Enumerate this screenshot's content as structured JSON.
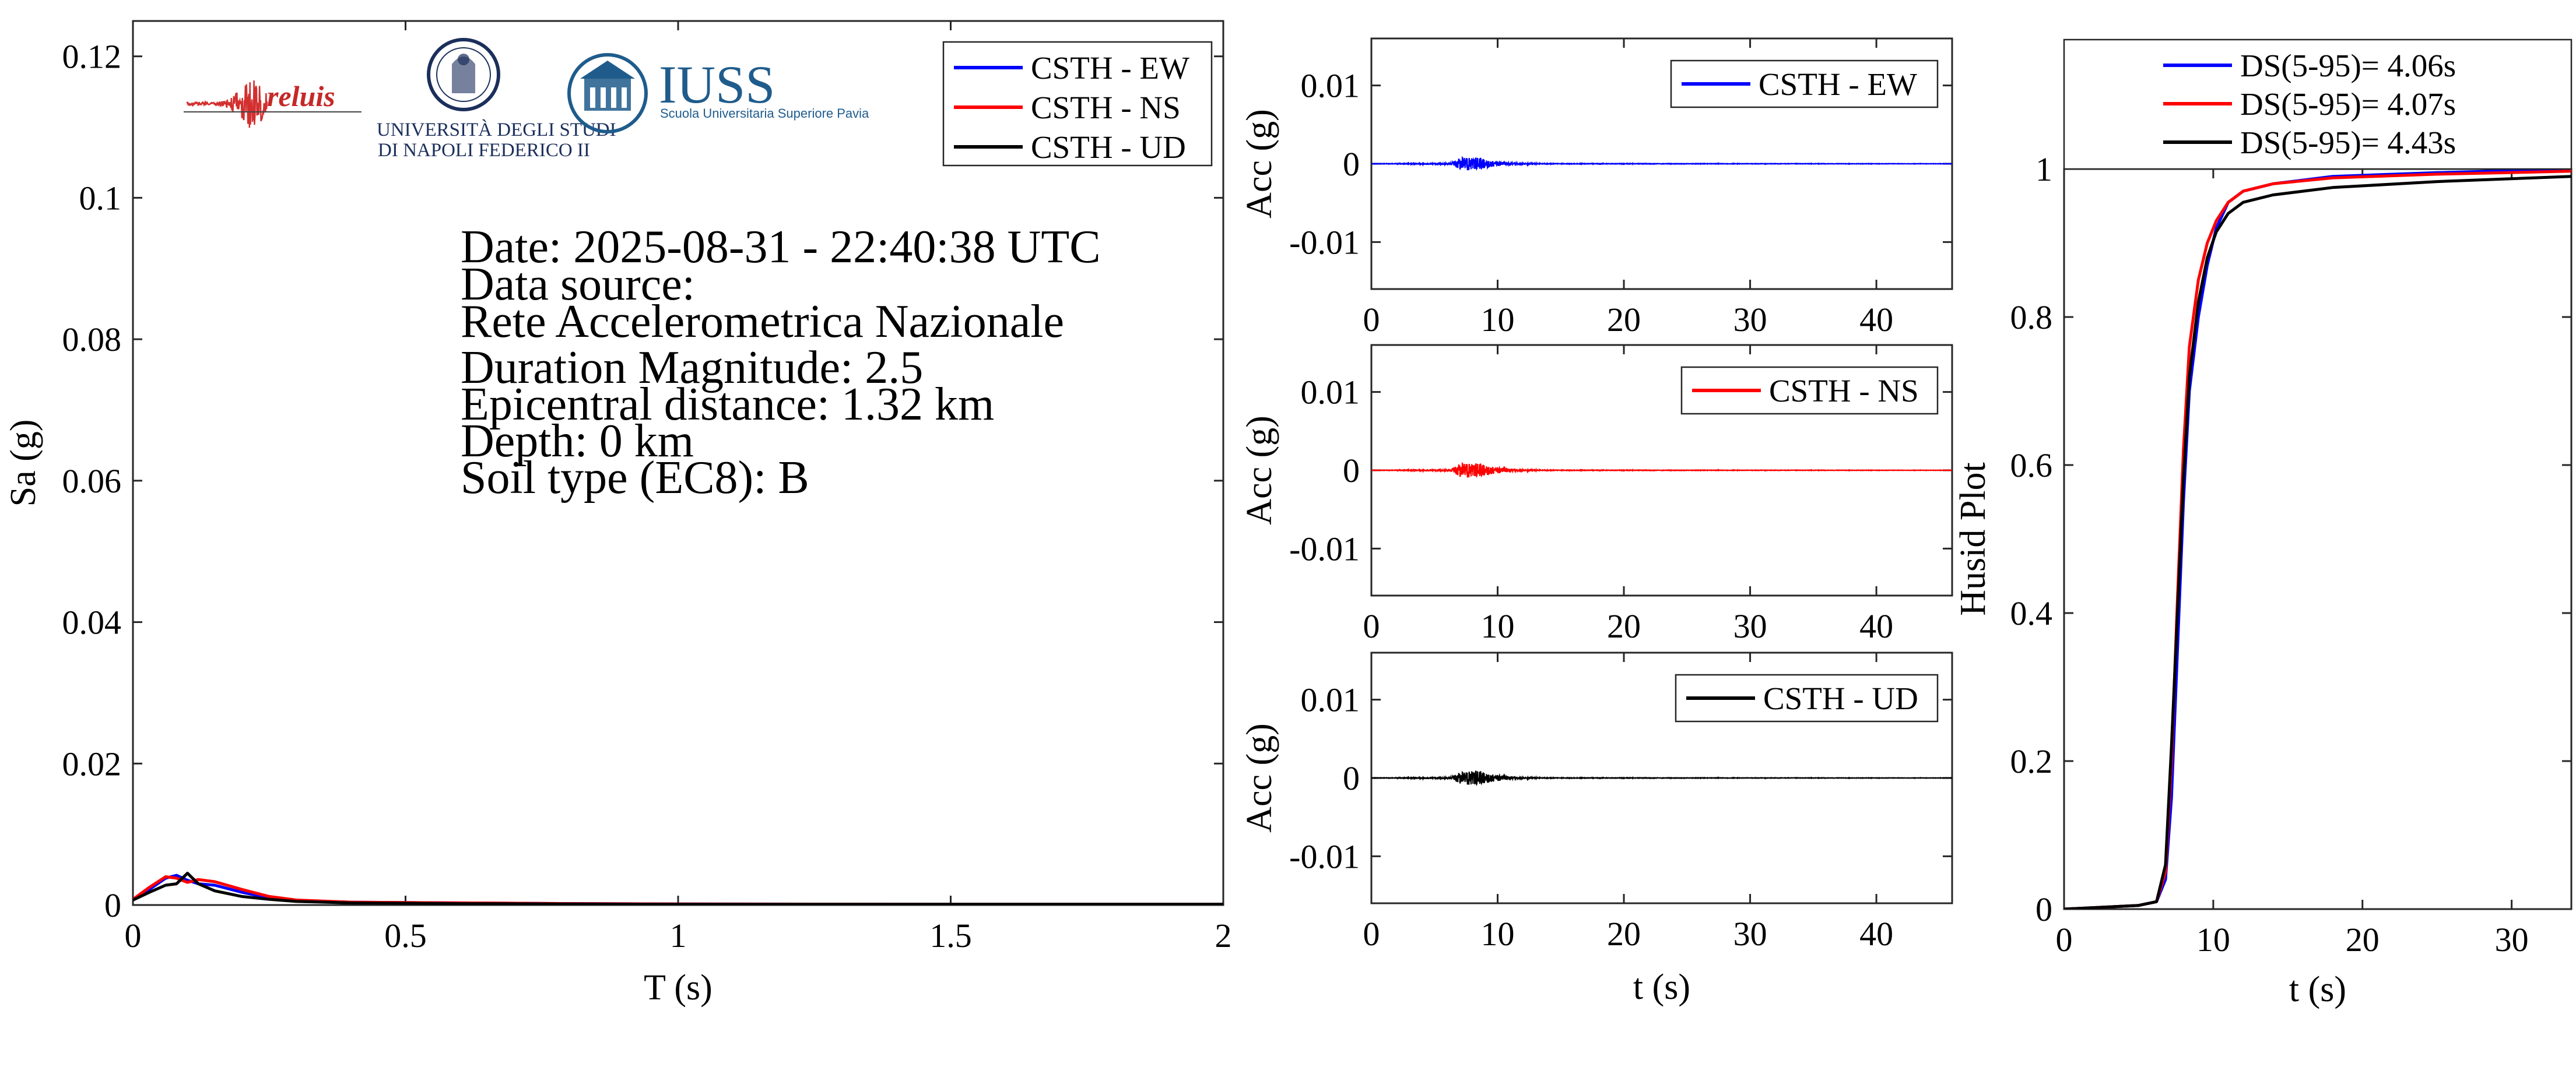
{
  "info": {
    "date": "Date: 2025-08-31 - 22:40:38 UTC",
    "source_label": "Data source:",
    "source_value": "Rete Accelerometrica Nazionale",
    "magnitude": "Duration Magnitude: 2.5",
    "distance": "Epicentral distance: 1.32 km",
    "depth": "Depth: 0 km",
    "soil": "Soil type (EC8): B"
  },
  "logos": {
    "reluis": "reluis",
    "unina_line1": "UNIVERSITÀ DEGLI STUDI",
    "unina_line2": "DI NAPOLI FEDERICO II",
    "iuss_name": "IUSS",
    "iuss_sub": "Scuola Universitaria Superiore Pavia"
  },
  "colors": {
    "ew": "#0000ff",
    "ns": "#ff0000",
    "ud": "#000000"
  },
  "chart_data": [
    {
      "id": "spectrum",
      "type": "line",
      "xlabel": "T (s)",
      "ylabel": "Sa (g)",
      "xlim": [
        0,
        2
      ],
      "ylim": [
        0,
        0.125
      ],
      "xticks": [
        0,
        0.5,
        1,
        1.5,
        2
      ],
      "xtick_labels": [
        "0",
        "0.5",
        "1",
        "1.5",
        "2"
      ],
      "yticks": [
        0,
        0.02,
        0.04,
        0.06,
        0.08,
        0.1,
        0.12
      ],
      "ytick_labels": [
        "0",
        "0.02",
        "0.04",
        "0.06",
        "0.08",
        "0.1",
        "0.12"
      ],
      "legend_position": "top-right",
      "series": [
        {
          "name": "CSTH - EW",
          "color": "#0000ff",
          "x": [
            0,
            0.03,
            0.06,
            0.08,
            0.1,
            0.12,
            0.15,
            0.2,
            0.25,
            0.3,
            0.4,
            0.6,
            0.8,
            1.0,
            1.5,
            2.0
          ],
          "y": [
            0.0008,
            0.0022,
            0.0038,
            0.0042,
            0.0035,
            0.003,
            0.0028,
            0.0018,
            0.001,
            0.0006,
            0.0004,
            0.0003,
            0.0002,
            0.00015,
            0.0001,
            0.0001
          ]
        },
        {
          "name": "CSTH - NS",
          "color": "#ff0000",
          "x": [
            0,
            0.03,
            0.06,
            0.08,
            0.1,
            0.12,
            0.15,
            0.2,
            0.25,
            0.3,
            0.4,
            0.6,
            0.8,
            1.0,
            1.5,
            2.0
          ],
          "y": [
            0.0008,
            0.0025,
            0.004,
            0.0038,
            0.0032,
            0.0036,
            0.0033,
            0.0022,
            0.0012,
            0.0007,
            0.0004,
            0.0003,
            0.0002,
            0.00015,
            0.0001,
            0.0001
          ]
        },
        {
          "name": "CSTH - UD",
          "color": "#000000",
          "x": [
            0,
            0.03,
            0.06,
            0.08,
            0.1,
            0.12,
            0.15,
            0.2,
            0.25,
            0.3,
            0.4,
            0.6,
            0.8,
            1.0,
            1.5,
            2.0
          ],
          "y": [
            0.0007,
            0.0018,
            0.0028,
            0.003,
            0.0045,
            0.003,
            0.002,
            0.0012,
            0.0008,
            0.0005,
            0.0003,
            0.0002,
            0.00015,
            0.0001,
            0.0001,
            0.0001
          ]
        }
      ]
    },
    {
      "id": "acc_ew",
      "type": "line",
      "xlabel": "",
      "ylabel": "Acc (g)",
      "xlim": [
        0,
        46
      ],
      "ylim": [
        -0.016,
        0.016
      ],
      "xticks": [
        0,
        10,
        20,
        30,
        40
      ],
      "xtick_labels": [
        "0",
        "10",
        "20",
        "30",
        "40"
      ],
      "yticks": [
        -0.01,
        0,
        0.01
      ],
      "ytick_labels": [
        "-0.01",
        "0",
        "0.01"
      ],
      "legend_position": "top-right",
      "series": [
        {
          "name": "CSTH - EW",
          "color": "#0000ff",
          "envelope": {
            "t": [
              0,
              6.2,
              6.8,
              7.4,
              8.0,
              8.6,
              9.5,
              10.5,
              12,
              14,
              46
            ],
            "a": [
              2e-05,
              0.0001,
              0.0006,
              0.001,
              0.0008,
              0.0007,
              0.0004,
              0.0002,
              0.0001,
              4e-05,
              2e-05
            ]
          }
        }
      ]
    },
    {
      "id": "acc_ns",
      "type": "line",
      "xlabel": "",
      "ylabel": "Acc (g)",
      "xlim": [
        0,
        46
      ],
      "ylim": [
        -0.016,
        0.016
      ],
      "xticks": [
        0,
        10,
        20,
        30,
        40
      ],
      "xtick_labels": [
        "0",
        "10",
        "20",
        "30",
        "40"
      ],
      "yticks": [
        -0.01,
        0,
        0.01
      ],
      "ytick_labels": [
        "-0.01",
        "0",
        "0.01"
      ],
      "legend_position": "top-right",
      "series": [
        {
          "name": "CSTH - NS",
          "color": "#ff0000",
          "envelope": {
            "t": [
              0,
              6.2,
              6.8,
              7.4,
              8.0,
              8.6,
              9.5,
              10.5,
              12,
              14,
              46
            ],
            "a": [
              2e-05,
              0.0001,
              0.0007,
              0.0011,
              0.0009,
              0.0008,
              0.0005,
              0.0003,
              0.0001,
              4e-05,
              2e-05
            ]
          }
        }
      ]
    },
    {
      "id": "acc_ud",
      "type": "line",
      "xlabel": "t (s)",
      "ylabel": "Acc (g)",
      "xlim": [
        0,
        46
      ],
      "ylim": [
        -0.016,
        0.016
      ],
      "xticks": [
        0,
        10,
        20,
        30,
        40
      ],
      "xtick_labels": [
        "0",
        "10",
        "20",
        "30",
        "40"
      ],
      "yticks": [
        -0.01,
        0,
        0.01
      ],
      "ytick_labels": [
        "-0.01",
        "0",
        "0.01"
      ],
      "legend_position": "top-right",
      "series": [
        {
          "name": "CSTH - UD",
          "color": "#000000",
          "envelope": {
            "t": [
              0,
              6.2,
              6.8,
              7.4,
              8.0,
              8.6,
              9.5,
              10.5,
              12,
              14,
              46
            ],
            "a": [
              2e-05,
              0.0001,
              0.0006,
              0.0009,
              0.001,
              0.0008,
              0.0005,
              0.0003,
              0.0001,
              4e-05,
              2e-05
            ]
          }
        }
      ]
    },
    {
      "id": "husid",
      "type": "line",
      "xlabel": "t (s)",
      "ylabel": "Husid Plot",
      "xlim": [
        0,
        34
      ],
      "ylim": [
        0,
        1
      ],
      "xticks": [
        0,
        10,
        20,
        30
      ],
      "xtick_labels": [
        "0",
        "10",
        "20",
        "30"
      ],
      "yticks": [
        0,
        0.2,
        0.4,
        0.6,
        0.8,
        1
      ],
      "ytick_labels": [
        "0",
        "0.2",
        "0.4",
        "0.6",
        "0.8",
        "1"
      ],
      "legend_position": "outside-top",
      "series": [
        {
          "name": "DS(5-95)= 4.06s",
          "color": "#0000ff",
          "x": [
            0,
            5,
            6.2,
            6.8,
            7.2,
            7.6,
            8.0,
            8.4,
            9.0,
            9.6,
            10.2,
            11.0,
            12.0,
            14.0,
            18.0,
            25.0,
            34.0
          ],
          "y": [
            0,
            0.005,
            0.01,
            0.04,
            0.15,
            0.35,
            0.55,
            0.7,
            0.8,
            0.87,
            0.92,
            0.955,
            0.97,
            0.98,
            0.99,
            0.995,
            1.0
          ]
        },
        {
          "name": "DS(5-95)= 4.07s",
          "color": "#ff0000",
          "x": [
            0,
            5,
            6.2,
            6.8,
            7.2,
            7.6,
            8.0,
            8.4,
            9.0,
            9.6,
            10.2,
            11.0,
            12.0,
            14.0,
            18.0,
            25.0,
            34.0
          ],
          "y": [
            0,
            0.005,
            0.01,
            0.05,
            0.2,
            0.42,
            0.62,
            0.76,
            0.85,
            0.9,
            0.93,
            0.955,
            0.97,
            0.98,
            0.988,
            0.993,
            0.997
          ]
        },
        {
          "name": "DS(5-95)= 4.43s",
          "color": "#000000",
          "x": [
            0,
            5,
            6.2,
            6.8,
            7.2,
            7.6,
            8.0,
            8.4,
            9.0,
            9.6,
            10.2,
            11.0,
            12.0,
            14.0,
            18.0,
            25.0,
            34.0
          ],
          "y": [
            0,
            0.005,
            0.01,
            0.06,
            0.22,
            0.4,
            0.58,
            0.72,
            0.82,
            0.88,
            0.915,
            0.94,
            0.955,
            0.965,
            0.975,
            0.983,
            0.99
          ]
        }
      ]
    }
  ]
}
